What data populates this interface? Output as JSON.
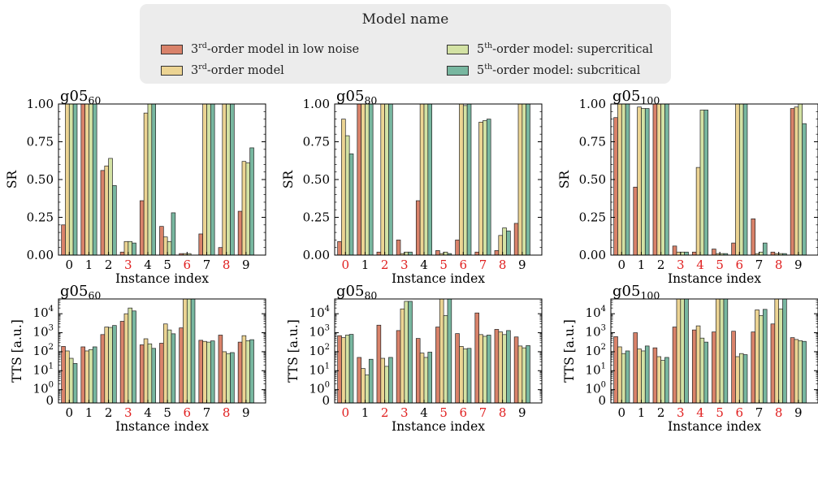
{
  "legend": {
    "title": "Model name",
    "items": [
      {
        "num": "3",
        "sup": "rd",
        "rest": "-order model in low noise",
        "color": "#d9826a"
      },
      {
        "num": "3",
        "sup": "rd",
        "rest": "-order model",
        "color": "#ecd493"
      },
      {
        "num": "5",
        "sup": "th",
        "rest": "-order model: supercritical",
        "color": "#d3e2a4"
      },
      {
        "num": "5",
        "sup": "th",
        "rest": "-order model: subcritical",
        "color": "#78b7a0"
      }
    ]
  },
  "chart_data": [
    {
      "type": "bar",
      "metric": "SR",
      "title_base": "g05",
      "title_sub": "60",
      "ylabel": "SR",
      "xlabel": "Instance index",
      "ylim": [
        0,
        1.0
      ],
      "yticks": [
        "0.00",
        "0.25",
        "0.50",
        "0.75",
        "1.00"
      ],
      "categories": [
        "0",
        "1",
        "2",
        "3",
        "4",
        "5",
        "6",
        "7",
        "8",
        "9"
      ],
      "highlight": [
        "3",
        "6",
        "8"
      ],
      "series": [
        {
          "values": [
            0.2,
            1.0,
            0.56,
            0.02,
            0.36,
            0.19,
            0.01,
            0.14,
            0.05,
            0.29
          ]
        },
        {
          "values": [
            1.0,
            1.0,
            0.59,
            0.09,
            0.94,
            0.12,
            0.01,
            1.0,
            1.0,
            0.62
          ]
        },
        {
          "values": [
            1.0,
            1.0,
            0.64,
            0.09,
            1.0,
            0.09,
            0.01,
            1.0,
            1.0,
            0.61
          ]
        },
        {
          "values": [
            1.0,
            1.0,
            0.46,
            0.08,
            1.0,
            0.28,
            0.0,
            1.0,
            1.0,
            0.71
          ]
        }
      ]
    },
    {
      "type": "bar",
      "metric": "SR",
      "title_base": "g05",
      "title_sub": "80",
      "ylabel": "SR",
      "xlabel": "Instance index",
      "ylim": [
        0,
        1.0
      ],
      "yticks": [
        "0.00",
        "0.25",
        "0.50",
        "0.75",
        "1.00"
      ],
      "categories": [
        "0",
        "1",
        "2",
        "3",
        "4",
        "5",
        "6",
        "7",
        "8",
        "9"
      ],
      "highlight": [
        "0",
        "2",
        "3",
        "5",
        "6",
        "7",
        "8"
      ],
      "series": [
        {
          "values": [
            0.09,
            1.0,
            0.02,
            0.1,
            0.36,
            0.03,
            0.1,
            0.02,
            0.03,
            0.21
          ]
        },
        {
          "values": [
            0.9,
            1.0,
            1.0,
            0.01,
            1.0,
            0.01,
            1.0,
            0.88,
            0.13,
            1.0
          ]
        },
        {
          "values": [
            0.79,
            1.0,
            1.0,
            0.02,
            1.0,
            0.02,
            0.99,
            0.89,
            0.18,
            1.0
          ]
        },
        {
          "values": [
            0.67,
            1.0,
            1.0,
            0.02,
            1.0,
            0.01,
            1.0,
            0.9,
            0.16,
            1.0
          ]
        }
      ]
    },
    {
      "type": "bar",
      "metric": "SR",
      "title_base": "g05",
      "title_sub": "100",
      "ylabel": "SR",
      "xlabel": "Instance index",
      "ylim": [
        0,
        1.0
      ],
      "yticks": [
        "0.00",
        "0.25",
        "0.50",
        "0.75",
        "1.00"
      ],
      "categories": [
        "0",
        "1",
        "2",
        "3",
        "4",
        "5",
        "6",
        "7",
        "8",
        "9"
      ],
      "highlight": [
        "3",
        "4",
        "5",
        "6",
        "8"
      ],
      "series": [
        {
          "values": [
            0.91,
            0.45,
            1.0,
            0.06,
            0.02,
            0.04,
            0.08,
            0.24,
            0.02,
            0.97
          ]
        },
        {
          "values": [
            1.0,
            0.98,
            1.0,
            0.02,
            0.58,
            0.01,
            1.0,
            0.01,
            0.01,
            0.98
          ]
        },
        {
          "values": [
            1.0,
            0.97,
            1.0,
            0.02,
            0.96,
            0.01,
            1.0,
            0.02,
            0.01,
            1.0
          ]
        },
        {
          "values": [
            1.0,
            0.97,
            1.0,
            0.02,
            0.96,
            0.01,
            1.0,
            0.08,
            0.01,
            0.87
          ]
        }
      ]
    },
    {
      "type": "bar",
      "metric": "TTS",
      "scale": "log",
      "title_base": "g05",
      "title_sub": "60",
      "ylabel": "TTS [a.u.]",
      "xlabel": "Instance index",
      "ylim": [
        0.2,
        60000
      ],
      "yticks": [
        "10^0",
        "10^1",
        "10^2",
        "10^3",
        "10^4"
      ],
      "ytick_zero": "0",
      "categories": [
        "0",
        "1",
        "2",
        "3",
        "4",
        "5",
        "6",
        "7",
        "8",
        "9"
      ],
      "highlight": [
        "3",
        "6",
        "8"
      ],
      "series": [
        {
          "values": [
            190,
            180,
            800,
            4000,
            230,
            280,
            1800,
            400,
            750,
            320
          ]
        },
        {
          "values": [
            110,
            110,
            2000,
            10000,
            480,
            2900,
            60000,
            350,
            100,
            700
          ]
        },
        {
          "values": [
            45,
            130,
            1900,
            20000,
            260,
            1400,
            60000,
            320,
            80,
            380
          ]
        },
        {
          "values": [
            24,
            180,
            2400,
            14000,
            150,
            880,
            60000,
            370,
            90,
            430
          ]
        }
      ]
    },
    {
      "type": "bar",
      "metric": "TTS",
      "scale": "log",
      "title_base": "g05",
      "title_sub": "80",
      "ylabel": "TTS [a.u.]",
      "xlabel": "Instance index",
      "ylim": [
        0.2,
        60000
      ],
      "yticks": [
        "10^0",
        "10^1",
        "10^2",
        "10^3",
        "10^4"
      ],
      "ytick_zero": "0",
      "categories": [
        "0",
        "1",
        "2",
        "3",
        "4",
        "5",
        "6",
        "7",
        "8",
        "9"
      ],
      "highlight": [
        "0",
        "2",
        "3",
        "5",
        "6",
        "7",
        "8"
      ],
      "series": [
        {
          "values": [
            700,
            50,
            2500,
            1300,
            500,
            2000,
            900,
            11000,
            1500,
            600
          ]
        },
        {
          "values": [
            550,
            13,
            45,
            18000,
            85,
            60000,
            190,
            800,
            1100,
            200
          ]
        },
        {
          "values": [
            750,
            6,
            17,
            45000,
            50,
            8000,
            140,
            650,
            800,
            160
          ]
        },
        {
          "values": [
            820,
            40,
            50,
            45000,
            95,
            60000,
            150,
            750,
            1300,
            210
          ]
        }
      ]
    },
    {
      "type": "bar",
      "metric": "TTS",
      "scale": "log",
      "title_base": "g05",
      "title_sub": "100",
      "ylabel": "TTS [a.u.]",
      "xlabel": "Instance index",
      "ylim": [
        0.2,
        60000
      ],
      "yticks": [
        "10^0",
        "10^1",
        "10^2",
        "10^3",
        "10^4"
      ],
      "ytick_zero": "0",
      "categories": [
        "0",
        "1",
        "2",
        "3",
        "4",
        "5",
        "6",
        "7",
        "8",
        "9"
      ],
      "highlight": [
        "3",
        "4",
        "5",
        "6",
        "8"
      ],
      "series": [
        {
          "values": [
            620,
            1000,
            160,
            2000,
            1400,
            1100,
            1200,
            1100,
            2900,
            550
          ]
        },
        {
          "values": [
            180,
            140,
            55,
            60000,
            2300,
            60000,
            55,
            16000,
            60000,
            440
          ]
        },
        {
          "values": [
            80,
            110,
            35,
            60000,
            520,
            60000,
            80,
            8000,
            18000,
            380
          ]
        },
        {
          "values": [
            110,
            200,
            50,
            60000,
            320,
            60000,
            70,
            17000,
            60000,
            350
          ]
        }
      ]
    }
  ]
}
